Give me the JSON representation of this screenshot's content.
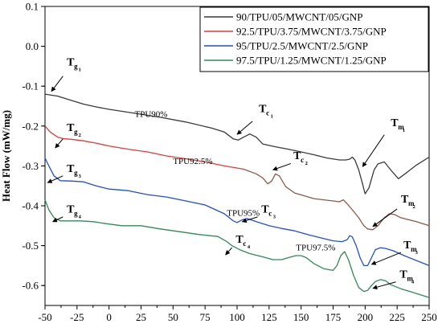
{
  "chart_data": {
    "type": "line",
    "xlim": [
      -50,
      250
    ],
    "ylim": [
      -0.65,
      0.1
    ],
    "ylabel": "Heat Flow (mW/mg)",
    "xlabel": "",
    "x_ticks": [
      "-50",
      "-25",
      "0",
      "25",
      "50",
      "75",
      "100",
      "125",
      "150",
      "175",
      "200",
      "225",
      "250"
    ],
    "y_ticks": [
      "0.1",
      "0.0",
      "-0.1",
      "-0.2",
      "-0.3",
      "-0.4",
      "-0.5",
      "-0.6"
    ],
    "x_tick_values": [
      -50,
      -25,
      0,
      25,
      50,
      75,
      100,
      125,
      150,
      175,
      200,
      225,
      250
    ],
    "y_tick_values": [
      0.1,
      0.0,
      -0.1,
      -0.2,
      -0.3,
      -0.4,
      -0.5,
      -0.6
    ],
    "grid": false,
    "legend_position": "top-right",
    "series": [
      {
        "name": "90/TPU/05/MWCNT/05/GNP",
        "color": "#3a3a3a",
        "segments": [
          {
            "color": "#3a3a3a",
            "points": [
              [
                -50,
                -0.12
              ],
              [
                -40,
                -0.125
              ],
              [
                -30,
                -0.135
              ],
              [
                -20,
                -0.145
              ],
              [
                -10,
                -0.152
              ],
              [
                0,
                -0.158
              ],
              [
                20,
                -0.168
              ],
              [
                40,
                -0.178
              ],
              [
                60,
                -0.19
              ],
              [
                80,
                -0.205
              ],
              [
                90,
                -0.215
              ],
              [
                97,
                -0.232
              ],
              [
                101,
                -0.235
              ],
              [
                105,
                -0.228
              ],
              [
                110,
                -0.22
              ],
              [
                115,
                -0.228
              ],
              [
                120,
                -0.245
              ],
              [
                130,
                -0.252
              ],
              [
                140,
                -0.258
              ],
              [
                150,
                -0.265
              ],
              [
                160,
                -0.272
              ],
              [
                170,
                -0.28
              ],
              [
                180,
                -0.285
              ],
              [
                185,
                -0.285
              ],
              [
                188,
                -0.283
              ],
              [
                190,
                -0.278
              ],
              [
                192,
                -0.285
              ],
              [
                195,
                -0.31
              ],
              [
                198,
                -0.345
              ],
              [
                200,
                -0.37
              ],
              [
                203,
                -0.355
              ],
              [
                207,
                -0.31
              ],
              [
                210,
                -0.295
              ],
              [
                215,
                -0.29
              ],
              [
                220,
                -0.31
              ],
              [
                226,
                -0.332
              ],
              [
                232,
                -0.318
              ],
              [
                240,
                -0.298
              ],
              [
                250,
                -0.278
              ]
            ]
          }
        ]
      },
      {
        "name": "92.5/TPU/3.75/MWCNT/3.75/GNP",
        "color": "#e53935",
        "segments": [
          {
            "color": "#e53935",
            "points": [
              [
                -50,
                -0.2
              ],
              [
                -46,
                -0.215
              ],
              [
                -40,
                -0.228
              ],
              [
                -35,
                -0.232
              ],
              [
                -30,
                -0.233
              ],
              [
                -20,
                -0.237
              ],
              [
                -10,
                -0.243
              ],
              [
                0,
                -0.25
              ],
              [
                15,
                -0.258
              ],
              [
                30,
                -0.265
              ],
              [
                45,
                -0.275
              ],
              [
                60,
                -0.282
              ],
              [
                75,
                -0.29
              ],
              [
                90,
                -0.3
              ],
              [
                105,
                -0.308
              ]
            ]
          },
          {
            "color": "#8d5a4a",
            "points": [
              [
                105,
                -0.308
              ],
              [
                115,
                -0.32
              ],
              [
                120,
                -0.33
              ],
              [
                124,
                -0.345
              ],
              [
                127,
                -0.338
              ],
              [
                130,
                -0.32
              ],
              [
                133,
                -0.325
              ],
              [
                138,
                -0.352
              ],
              [
                145,
                -0.368
              ],
              [
                160,
                -0.382
              ],
              [
                175,
                -0.388
              ],
              [
                180,
                -0.39
              ],
              [
                183,
                -0.385
              ],
              [
                186,
                -0.395
              ],
              [
                190,
                -0.41
              ],
              [
                195,
                -0.43
              ],
              [
                199,
                -0.45
              ],
              [
                202,
                -0.458
              ],
              [
                206,
                -0.46
              ],
              [
                210,
                -0.45
              ],
              [
                215,
                -0.43
              ],
              [
                219,
                -0.42
              ],
              [
                223,
                -0.422
              ],
              [
                228,
                -0.43
              ],
              [
                240,
                -0.44
              ],
              [
                250,
                -0.45
              ]
            ]
          }
        ]
      },
      {
        "name": "95/TPU/2.5/MWCNT/2.5/GNP",
        "color": "#1f4fd8",
        "segments": [
          {
            "color": "#1f4fd8",
            "points": [
              [
                -50,
                -0.28
              ],
              [
                -47,
                -0.3
              ],
              [
                -43,
                -0.325
              ],
              [
                -38,
                -0.337
              ],
              [
                -30,
                -0.338
              ],
              [
                -20,
                -0.34
              ],
              [
                -10,
                -0.35
              ],
              [
                0,
                -0.358
              ],
              [
                15,
                -0.362
              ],
              [
                30,
                -0.372
              ],
              [
                45,
                -0.378
              ],
              [
                60,
                -0.388
              ],
              [
                75,
                -0.398
              ],
              [
                90,
                -0.42
              ],
              [
                97,
                -0.438
              ],
              [
                100,
                -0.442
              ],
              [
                104,
                -0.435
              ],
              [
                108,
                -0.432
              ],
              [
                115,
                -0.44
              ],
              [
                125,
                -0.45
              ],
              [
                135,
                -0.457
              ],
              [
                145,
                -0.463
              ],
              [
                155,
                -0.472
              ],
              [
                165,
                -0.48
              ],
              [
                175,
                -0.488
              ],
              [
                182,
                -0.49
              ],
              [
                186,
                -0.485
              ],
              [
                188,
                -0.475
              ],
              [
                190,
                -0.478
              ],
              [
                193,
                -0.5
              ],
              [
                196,
                -0.53
              ],
              [
                199,
                -0.55
              ],
              [
                202,
                -0.55
              ],
              [
                205,
                -0.53
              ],
              [
                208,
                -0.51
              ],
              [
                212,
                -0.505
              ],
              [
                216,
                -0.507
              ],
              [
                222,
                -0.513
              ],
              [
                232,
                -0.527
              ],
              [
                242,
                -0.54
              ],
              [
                250,
                -0.55
              ]
            ]
          }
        ]
      },
      {
        "name": "97.5/TPU/1.25/MWCNT/1.25/GNP",
        "color": "#2e8b57",
        "segments": [
          {
            "color": "#2e8b57",
            "points": [
              [
                -50,
                -0.385
              ],
              [
                -47,
                -0.41
              ],
              [
                -43,
                -0.43
              ],
              [
                -38,
                -0.438
              ],
              [
                -32,
                -0.438
              ],
              [
                -22,
                -0.438
              ],
              [
                -12,
                -0.44
              ],
              [
                -2,
                -0.445
              ],
              [
                10,
                -0.45
              ],
              [
                25,
                -0.45
              ],
              [
                40,
                -0.458
              ],
              [
                55,
                -0.465
              ],
              [
                70,
                -0.472
              ],
              [
                85,
                -0.477
              ],
              [
                92,
                -0.49
              ],
              [
                96,
                -0.5
              ],
              [
                102,
                -0.51
              ],
              [
                110,
                -0.52
              ],
              [
                120,
                -0.528
              ],
              [
                128,
                -0.535
              ],
              [
                135,
                -0.535
              ],
              [
                140,
                -0.53
              ],
              [
                146,
                -0.525
              ],
              [
                150,
                -0.525
              ],
              [
                154,
                -0.53
              ],
              [
                160,
                -0.545
              ],
              [
                168,
                -0.558
              ],
              [
                175,
                -0.562
              ],
              [
                178,
                -0.55
              ],
              [
                181,
                -0.525
              ],
              [
                184,
                -0.515
              ],
              [
                187,
                -0.535
              ],
              [
                191,
                -0.575
              ],
              [
                195,
                -0.605
              ],
              [
                199,
                -0.615
              ],
              [
                202,
                -0.612
              ],
              [
                205,
                -0.6
              ],
              [
                208,
                -0.59
              ],
              [
                212,
                -0.585
              ],
              [
                216,
                -0.588
              ],
              [
                220,
                -0.598
              ],
              [
                228,
                -0.608
              ],
              [
                238,
                -0.618
              ],
              [
                250,
                -0.63
              ]
            ]
          }
        ]
      }
    ],
    "annotations": [
      {
        "kind": "symbol",
        "base": "T",
        "sub": "g1",
        "x": -33,
        "y": -0.048
      },
      {
        "kind": "symbol",
        "base": "T",
        "sub": "g2",
        "x": -33,
        "y": -0.213
      },
      {
        "kind": "symbol",
        "base": "T",
        "sub": "g3",
        "x": -33,
        "y": -0.315
      },
      {
        "kind": "symbol",
        "base": "T",
        "sub": "g4",
        "x": -33,
        "y": -0.417
      },
      {
        "kind": "symbol",
        "base": "T",
        "sub": "c1",
        "x": 117,
        "y": -0.165
      },
      {
        "kind": "symbol",
        "base": "T",
        "sub": "c2",
        "x": 144,
        "y": -0.283
      },
      {
        "kind": "symbol",
        "base": "T",
        "sub": "c3",
        "x": 119,
        "y": -0.417
      },
      {
        "kind": "symbol",
        "base": "T",
        "sub": "c4",
        "x": 99,
        "y": -0.493
      },
      {
        "kind": "symbol",
        "base": "T",
        "sub": "m1",
        "x": 220,
        "y": -0.2
      },
      {
        "kind": "symbol",
        "base": "T",
        "sub": "m2",
        "x": 228,
        "y": -0.392
      },
      {
        "kind": "symbol",
        "base": "T",
        "sub": "m3",
        "x": 230,
        "y": -0.507
      },
      {
        "kind": "symbol",
        "base": "T",
        "sub": "m4",
        "x": 227,
        "y": -0.58
      },
      {
        "kind": "text",
        "text": "TPU90%",
        "x": 20,
        "y": -0.177
      },
      {
        "kind": "text",
        "text": "TPU92.5%",
        "x": 50,
        "y": -0.295
      },
      {
        "kind": "text",
        "text": "TPU95%",
        "x": 92,
        "y": -0.425
      },
      {
        "kind": "text",
        "text": "TPU97.5%",
        "x": 146,
        "y": -0.512
      }
    ],
    "arrows": [
      {
        "from": [
          -36,
          -0.075
        ],
        "to": [
          -45,
          -0.113
        ]
      },
      {
        "from": [
          -36,
          -0.232
        ],
        "to": [
          -42,
          -0.255
        ]
      },
      {
        "from": [
          -36,
          -0.325
        ],
        "to": [
          -48,
          -0.342
        ]
      },
      {
        "from": [
          -36,
          -0.428
        ],
        "to": [
          -44,
          -0.44
        ]
      },
      {
        "from": [
          112,
          -0.188
        ],
        "to": [
          100,
          -0.221
        ]
      },
      {
        "from": [
          142,
          -0.294
        ],
        "to": [
          128,
          -0.31
        ]
      },
      {
        "from": [
          116,
          -0.428
        ],
        "to": [
          104,
          -0.44
        ]
      },
      {
        "from": [
          96,
          -0.505
        ],
        "to": [
          91,
          -0.523
        ]
      },
      {
        "from": [
          215,
          -0.222
        ],
        "to": [
          198,
          -0.302
        ]
      },
      {
        "from": [
          225,
          -0.408
        ],
        "to": [
          206,
          -0.452
        ]
      },
      {
        "from": [
          228,
          -0.517
        ],
        "to": [
          205,
          -0.547
        ]
      },
      {
        "from": [
          224,
          -0.591
        ],
        "to": [
          206,
          -0.607
        ]
      }
    ]
  }
}
